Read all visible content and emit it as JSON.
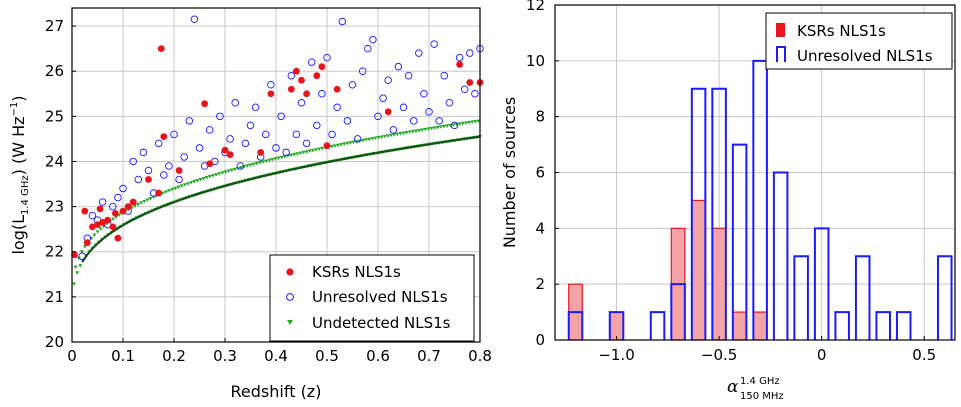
{
  "chart_data": [
    {
      "type": "scatter",
      "xlabel": "Redshift (z)",
      "ylabel": "log(L1.4 GHz) (W Hz−1)",
      "ylabel_parts": {
        "main": "log(L",
        "sub": "1.4 GHz",
        "unit": ") (W Hz",
        "sup": "−1",
        "close": ")"
      },
      "xlim": [
        0,
        0.8
      ],
      "ylim": [
        20,
        27.4
      ],
      "xticks": [
        "0",
        "0.1",
        "0.2",
        "0.3",
        "0.4",
        "0.5",
        "0.6",
        "0.7",
        "0.8"
      ],
      "yticks": [
        "20",
        "21",
        "22",
        "23",
        "24",
        "25",
        "26",
        "27"
      ],
      "grid": true,
      "legend_position": "bottom-right",
      "series": [
        {
          "name": "KSRs NLS1s",
          "marker": "filled-circle",
          "color": "#e8141c",
          "points": [
            [
              0.005,
              21.93
            ],
            [
              0.025,
              22.9
            ],
            [
              0.03,
              22.2
            ],
            [
              0.04,
              22.55
            ],
            [
              0.05,
              22.6
            ],
            [
              0.055,
              22.95
            ],
            [
              0.06,
              22.65
            ],
            [
              0.07,
              22.7
            ],
            [
              0.08,
              22.55
            ],
            [
              0.085,
              22.85
            ],
            [
              0.09,
              22.3
            ],
            [
              0.1,
              22.9
            ],
            [
              0.11,
              23.0
            ],
            [
              0.12,
              23.1
            ],
            [
              0.15,
              23.6
            ],
            [
              0.17,
              23.3
            ],
            [
              0.175,
              26.5
            ],
            [
              0.18,
              24.55
            ],
            [
              0.21,
              23.8
            ],
            [
              0.26,
              25.28
            ],
            [
              0.27,
              23.95
            ],
            [
              0.3,
              24.25
            ],
            [
              0.31,
              24.15
            ],
            [
              0.37,
              24.2
            ],
            [
              0.39,
              25.5
            ],
            [
              0.43,
              25.6
            ],
            [
              0.44,
              26.0
            ],
            [
              0.45,
              25.8
            ],
            [
              0.46,
              25.5
            ],
            [
              0.48,
              25.9
            ],
            [
              0.49,
              26.1
            ],
            [
              0.5,
              24.35
            ],
            [
              0.52,
              25.6
            ],
            [
              0.62,
              25.1
            ],
            [
              0.76,
              26.15
            ],
            [
              0.78,
              25.75
            ],
            [
              0.8,
              25.75
            ]
          ]
        },
        {
          "name": "Unresolved NLS1s",
          "marker": "open-circle",
          "color": "#1a1aff",
          "points": [
            [
              0.02,
              21.9
            ],
            [
              0.03,
              22.3
            ],
            [
              0.04,
              22.8
            ],
            [
              0.05,
              22.7
            ],
            [
              0.06,
              23.1
            ],
            [
              0.07,
              22.6
            ],
            [
              0.08,
              23.0
            ],
            [
              0.09,
              23.2
            ],
            [
              0.1,
              23.4
            ],
            [
              0.11,
              22.9
            ],
            [
              0.12,
              24.0
            ],
            [
              0.13,
              23.6
            ],
            [
              0.14,
              24.2
            ],
            [
              0.15,
              23.8
            ],
            [
              0.16,
              23.3
            ],
            [
              0.17,
              24.4
            ],
            [
              0.18,
              23.7
            ],
            [
              0.19,
              23.9
            ],
            [
              0.2,
              24.6
            ],
            [
              0.21,
              23.6
            ],
            [
              0.22,
              24.1
            ],
            [
              0.23,
              24.9
            ],
            [
              0.24,
              27.15
            ],
            [
              0.25,
              24.3
            ],
            [
              0.26,
              23.9
            ],
            [
              0.27,
              24.7
            ],
            [
              0.28,
              24.0
            ],
            [
              0.29,
              25.0
            ],
            [
              0.3,
              24.2
            ],
            [
              0.31,
              24.5
            ],
            [
              0.32,
              25.3
            ],
            [
              0.33,
              23.9
            ],
            [
              0.34,
              24.4
            ],
            [
              0.35,
              24.8
            ],
            [
              0.36,
              25.2
            ],
            [
              0.37,
              24.1
            ],
            [
              0.38,
              24.6
            ],
            [
              0.39,
              25.7
            ],
            [
              0.4,
              24.3
            ],
            [
              0.41,
              25.0
            ],
            [
              0.42,
              24.2
            ],
            [
              0.43,
              25.9
            ],
            [
              0.44,
              24.6
            ],
            [
              0.45,
              25.3
            ],
            [
              0.46,
              24.4
            ],
            [
              0.47,
              26.2
            ],
            [
              0.48,
              24.8
            ],
            [
              0.49,
              25.5
            ],
            [
              0.5,
              26.3
            ],
            [
              0.51,
              24.6
            ],
            [
              0.52,
              25.2
            ],
            [
              0.53,
              27.1
            ],
            [
              0.54,
              24.9
            ],
            [
              0.55,
              25.7
            ],
            [
              0.56,
              24.5
            ],
            [
              0.57,
              26.0
            ],
            [
              0.58,
              26.5
            ],
            [
              0.59,
              26.7
            ],
            [
              0.6,
              25.0
            ],
            [
              0.61,
              25.4
            ],
            [
              0.62,
              25.8
            ],
            [
              0.63,
              24.7
            ],
            [
              0.64,
              26.1
            ],
            [
              0.65,
              25.2
            ],
            [
              0.66,
              25.9
            ],
            [
              0.67,
              24.9
            ],
            [
              0.68,
              26.4
            ],
            [
              0.69,
              25.5
            ],
            [
              0.7,
              25.1
            ],
            [
              0.71,
              26.6
            ],
            [
              0.72,
              24.9
            ],
            [
              0.73,
              25.9
            ],
            [
              0.74,
              25.3
            ],
            [
              0.75,
              24.8
            ],
            [
              0.76,
              26.3
            ],
            [
              0.77,
              25.6
            ],
            [
              0.78,
              26.4
            ],
            [
              0.79,
              25.5
            ],
            [
              0.8,
              26.5
            ]
          ]
        },
        {
          "name": "Undetected NLS1s",
          "marker": "triangle-down",
          "color": "#22aa22"
        }
      ]
    },
    {
      "type": "bar",
      "subtype": "histogram",
      "xlabel": "α 1.4 GHz / 150 MHz",
      "xlabel_parts": {
        "main": "α",
        "sup": "1.4 GHz",
        "sub": "150 MHz"
      },
      "ylabel": "Number of sources",
      "xlim": [
        -1.3,
        0.65
      ],
      "ylim": [
        0,
        12
      ],
      "xticks": [
        "−1.0",
        "−0.5",
        "0",
        "0.5"
      ],
      "yticks": [
        "0",
        "2",
        "4",
        "6",
        "8",
        "10",
        "12"
      ],
      "grid": true,
      "legend_position": "top-right",
      "bin_width": 0.1,
      "series": [
        {
          "name": "KSRs NLS1s",
          "style": "filled",
          "color": "#e8141c",
          "fill": "#f4a3a6",
          "bins": [
            [
              -1.2,
              2
            ],
            [
              -1.0,
              1
            ],
            [
              -0.7,
              4
            ],
            [
              -0.6,
              5
            ],
            [
              -0.5,
              4
            ],
            [
              -0.4,
              1
            ],
            [
              -0.3,
              1
            ]
          ]
        },
        {
          "name": "Unresolved NLS1s",
          "style": "outline",
          "color": "#1a1aff",
          "bins": [
            [
              -1.2,
              1
            ],
            [
              -1.1,
              0
            ],
            [
              -1.0,
              1
            ],
            [
              -0.9,
              0
            ],
            [
              -0.8,
              1
            ],
            [
              -0.7,
              2
            ],
            [
              -0.6,
              9
            ],
            [
              -0.5,
              9
            ],
            [
              -0.4,
              7
            ],
            [
              -0.3,
              10
            ],
            [
              -0.2,
              6
            ],
            [
              -0.1,
              3
            ],
            [
              0.0,
              4
            ],
            [
              0.1,
              1
            ],
            [
              0.2,
              3
            ],
            [
              0.3,
              1
            ],
            [
              0.4,
              1
            ],
            [
              0.5,
              0
            ],
            [
              0.6,
              3
            ]
          ]
        }
      ]
    }
  ]
}
